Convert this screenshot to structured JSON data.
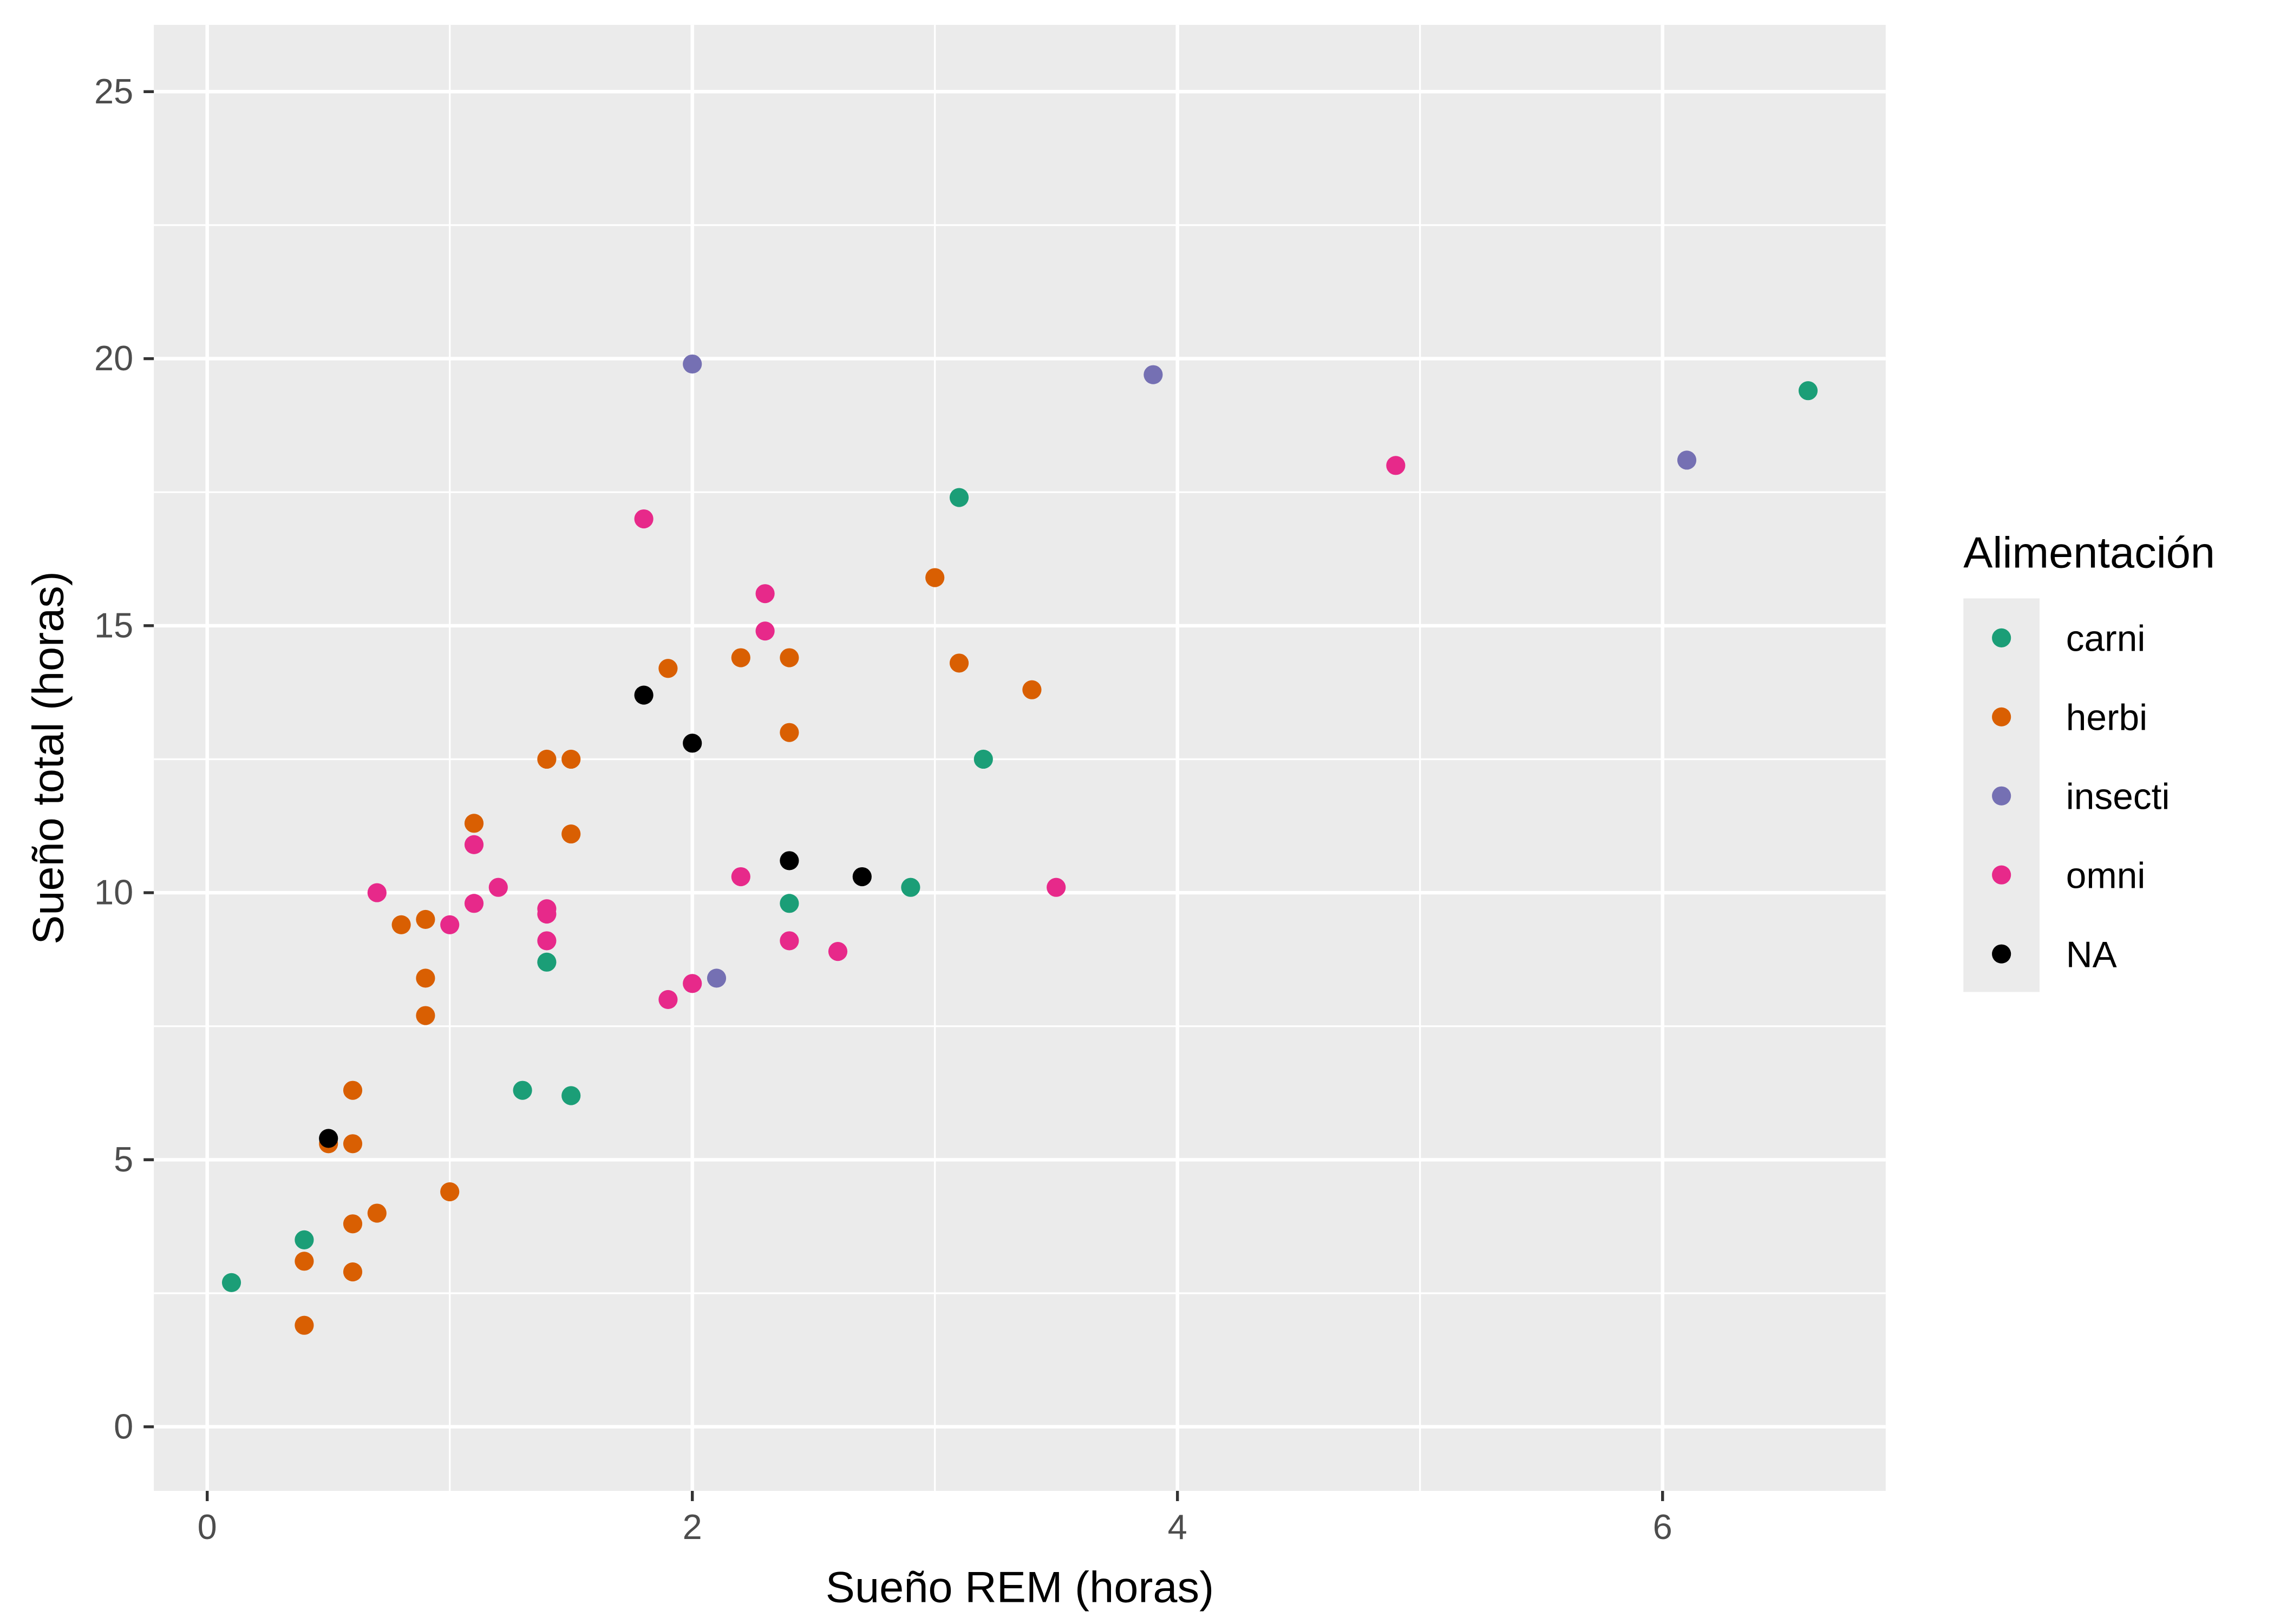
{
  "chart_data": {
    "type": "scatter",
    "title": "",
    "xlabel": "Sueño REM (horas)",
    "ylabel": "Sueño total (horas)",
    "xlim": [
      -0.22,
      6.92
    ],
    "ylim": [
      -1.2,
      26.25
    ],
    "xticks": [
      0,
      2,
      4,
      6
    ],
    "yticks": [
      0,
      5,
      10,
      15,
      20,
      25
    ],
    "grid": true,
    "legend": {
      "title": "Alimentación",
      "placement": "right"
    },
    "series": [
      {
        "name": "carni",
        "color": "#1B9E77",
        "points": [
          [
            0.1,
            2.7
          ],
          [
            0.4,
            3.5
          ],
          [
            1.3,
            6.3
          ],
          [
            1.5,
            6.2
          ],
          [
            1.4,
            8.7
          ],
          [
            2.4,
            9.8
          ],
          [
            2.9,
            10.1
          ],
          [
            3.2,
            12.5
          ],
          [
            3.1,
            17.4
          ],
          [
            6.6,
            19.4
          ]
        ]
      },
      {
        "name": "herbi",
        "color": "#D95F02",
        "points": [
          [
            0.4,
            1.9
          ],
          [
            0.4,
            3.1
          ],
          [
            0.6,
            2.9
          ],
          [
            0.6,
            3.8
          ],
          [
            0.7,
            4.0
          ],
          [
            1.0,
            4.4
          ],
          [
            0.5,
            5.3
          ],
          [
            0.6,
            5.3
          ],
          [
            0.6,
            6.3
          ],
          [
            0.9,
            7.7
          ],
          [
            0.9,
            8.4
          ],
          [
            0.8,
            9.4
          ],
          [
            0.9,
            9.5
          ],
          [
            1.1,
            11.3
          ],
          [
            1.4,
            12.5
          ],
          [
            1.5,
            12.5
          ],
          [
            1.5,
            11.1
          ],
          [
            1.9,
            14.2
          ],
          [
            2.2,
            14.4
          ],
          [
            2.4,
            14.4
          ],
          [
            2.4,
            13.0
          ],
          [
            3.0,
            15.9
          ],
          [
            3.1,
            14.3
          ],
          [
            3.4,
            13.8
          ]
        ]
      },
      {
        "name": "insecti",
        "color": "#7570B3",
        "points": [
          [
            2.0,
            19.9
          ],
          [
            3.9,
            19.7
          ],
          [
            6.1,
            18.1
          ],
          [
            2.1,
            8.4
          ]
        ]
      },
      {
        "name": "omni",
        "color": "#E7298A",
        "points": [
          [
            0.7,
            10.0
          ],
          [
            1.0,
            9.4
          ],
          [
            1.1,
            9.8
          ],
          [
            1.1,
            10.9
          ],
          [
            1.2,
            10.1
          ],
          [
            1.4,
            9.7
          ],
          [
            1.4,
            9.6
          ],
          [
            1.4,
            9.1
          ],
          [
            1.8,
            17.0
          ],
          [
            2.3,
            15.6
          ],
          [
            2.3,
            14.9
          ],
          [
            2.2,
            10.3
          ],
          [
            1.9,
            8.0
          ],
          [
            2.0,
            8.3
          ],
          [
            2.4,
            9.1
          ],
          [
            2.6,
            8.9
          ],
          [
            3.5,
            10.1
          ],
          [
            4.9,
            18.0
          ]
        ]
      },
      {
        "name": "NA",
        "color": "#000000",
        "points": [
          [
            0.5,
            5.4
          ],
          [
            1.8,
            13.7
          ],
          [
            2.0,
            12.8
          ],
          [
            2.4,
            10.6
          ],
          [
            2.7,
            10.3
          ]
        ]
      }
    ]
  }
}
